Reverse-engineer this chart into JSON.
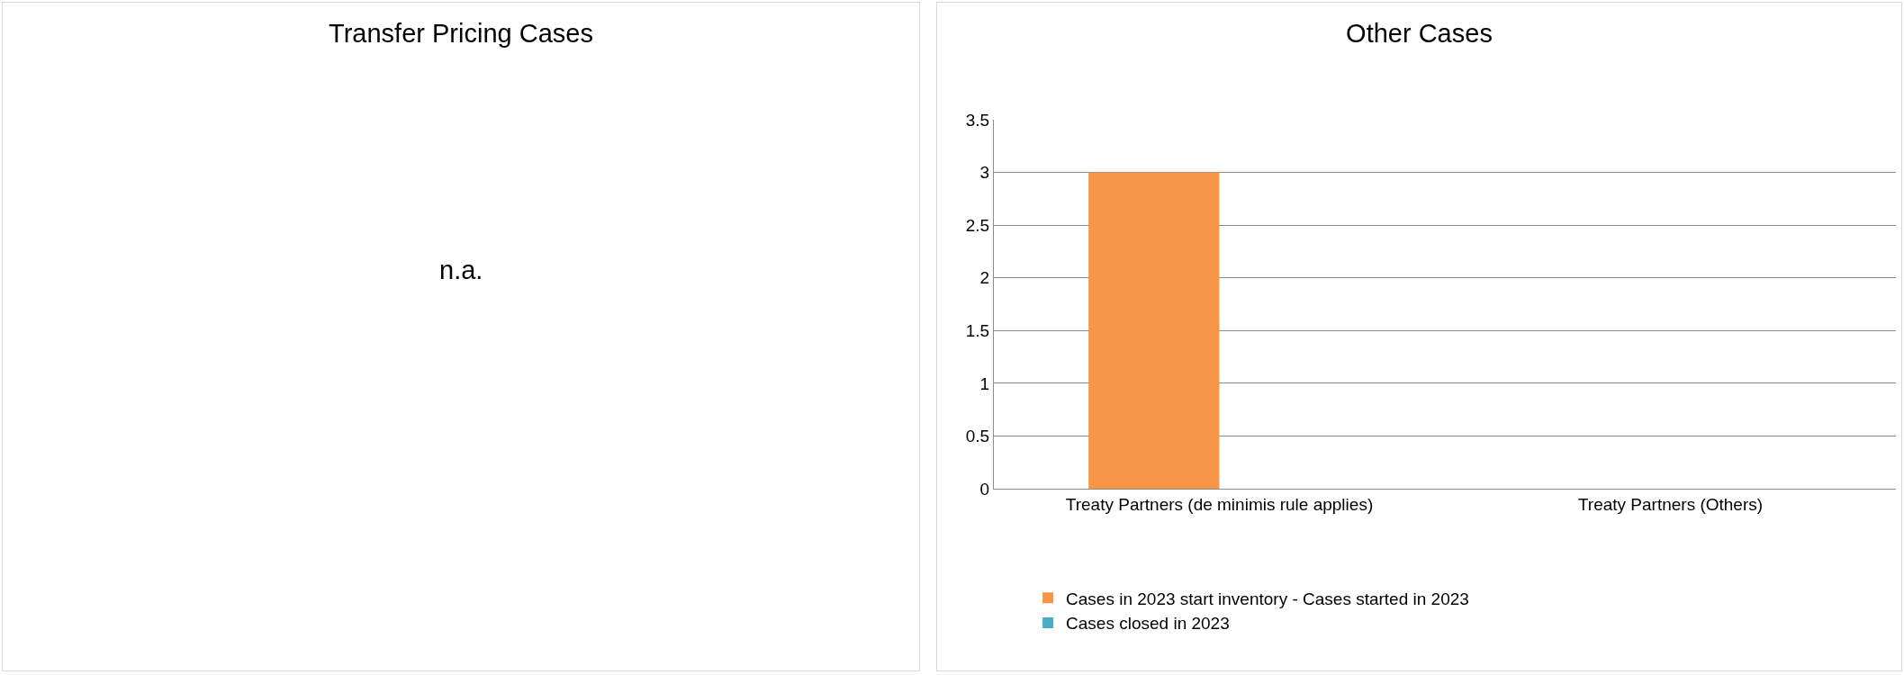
{
  "chart_data": [
    {
      "type": "other",
      "title": "Transfer Pricing Cases",
      "annotations": [
        "n.a."
      ]
    },
    {
      "type": "bar",
      "title": "Other Cases",
      "categories": [
        "Treaty Partners (de minimis rule applies)",
        "Treaty Partners (Others)"
      ],
      "series": [
        {
          "name": "Cases in 2023 start inventory - Cases started in 2023",
          "color": "#f79646",
          "values": [
            3,
            0
          ]
        },
        {
          "name": "Cases closed in 2023",
          "color": "#4bacc6",
          "values": [
            0,
            0
          ]
        }
      ],
      "ylim": [
        0,
        3.5
      ],
      "yticks": [
        0,
        0.5,
        1,
        1.5,
        2,
        2.5,
        3,
        3.5
      ],
      "grid": "y",
      "legend": "bottom"
    }
  ]
}
